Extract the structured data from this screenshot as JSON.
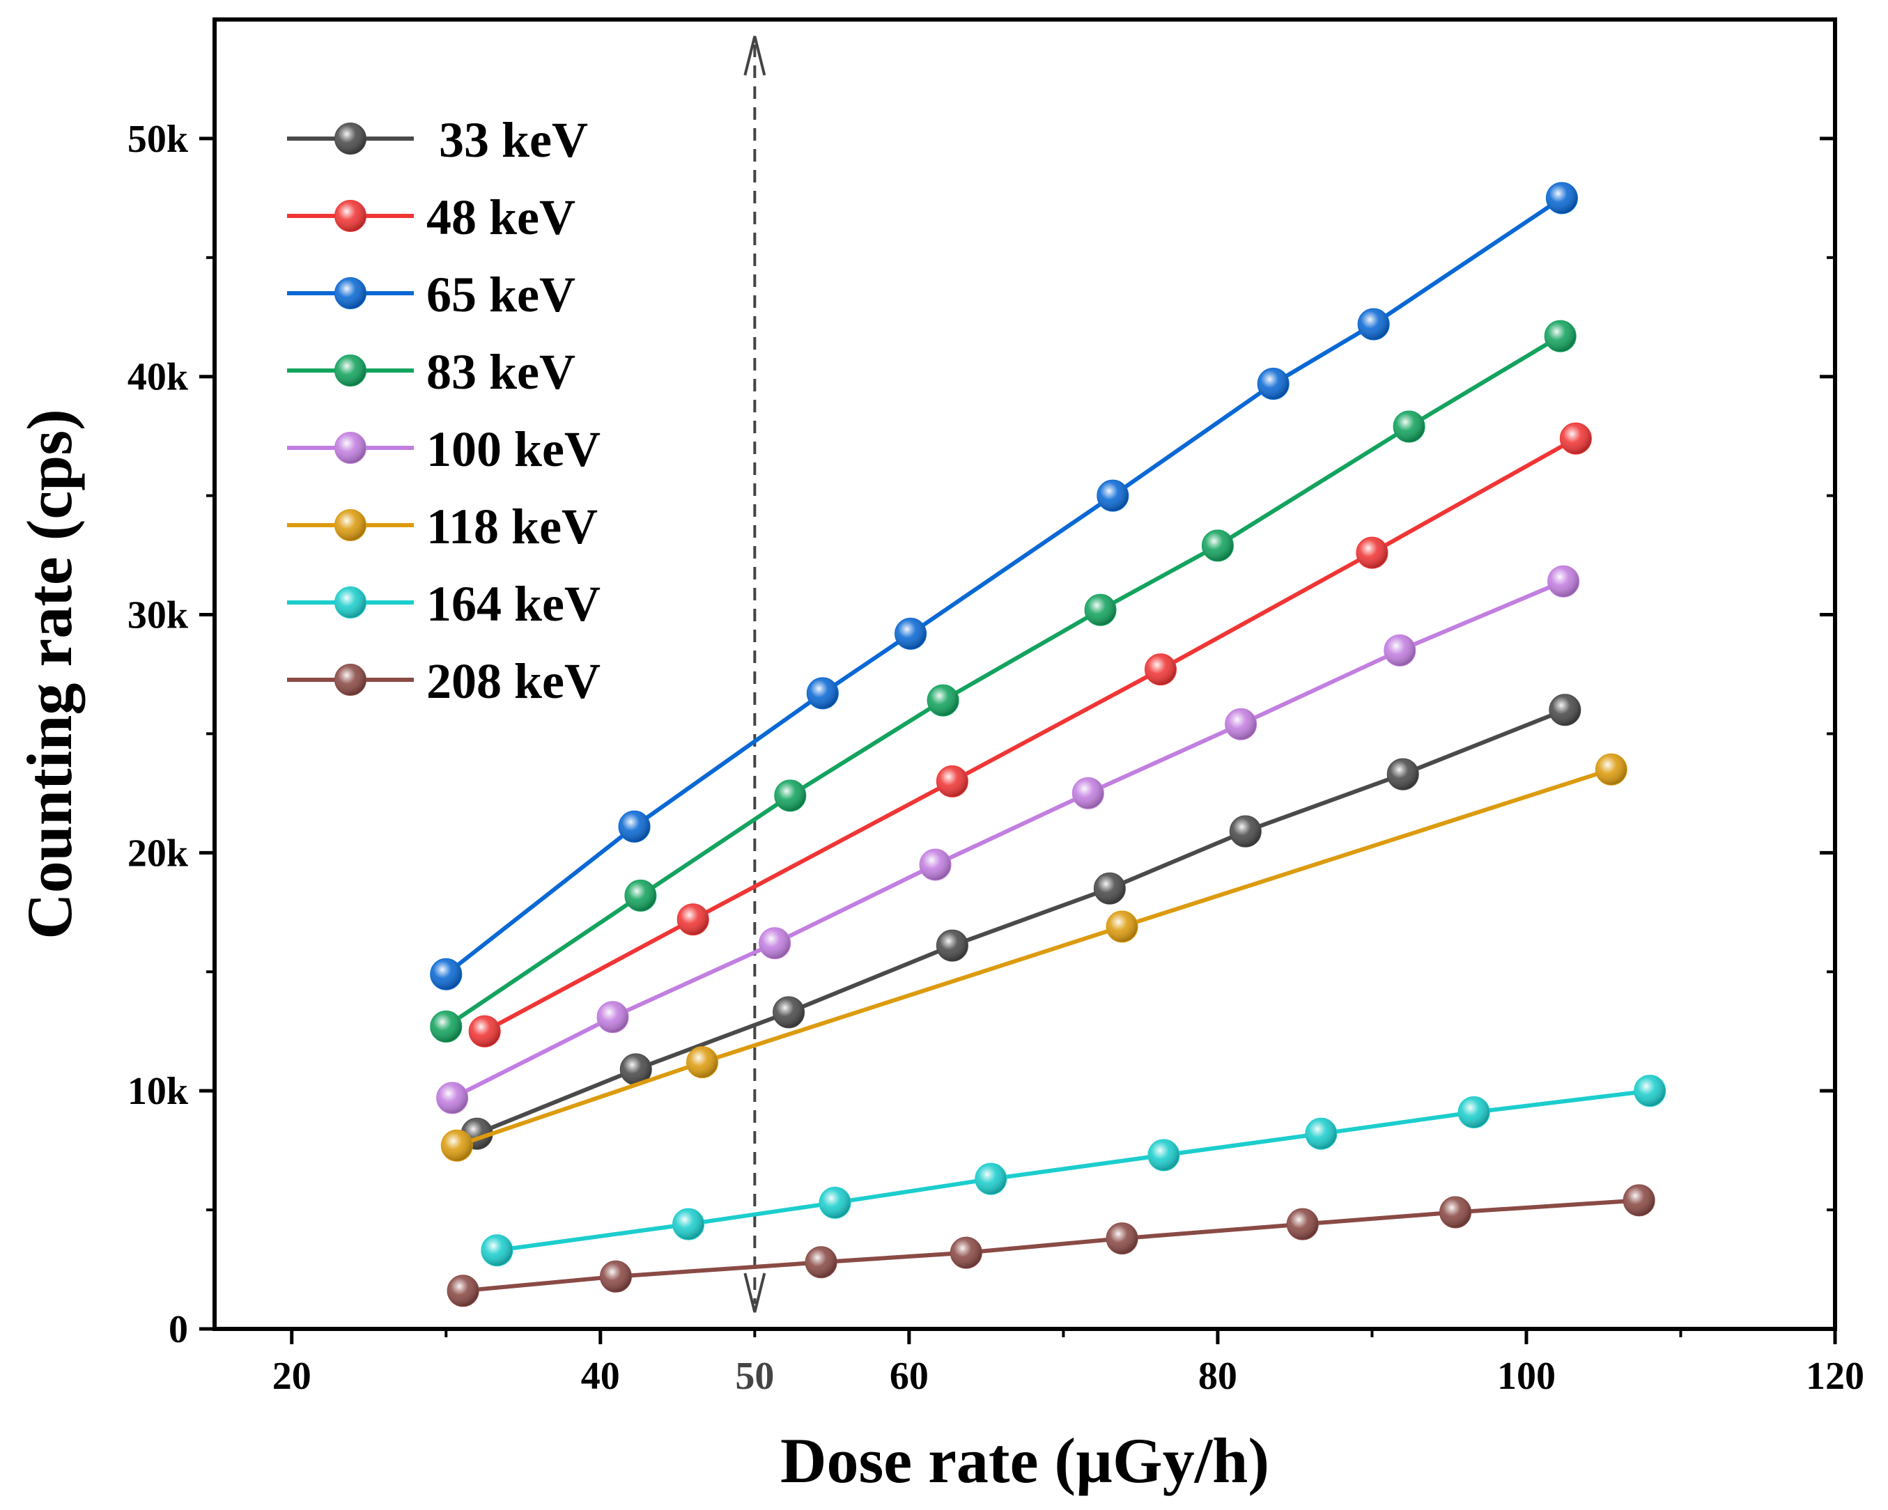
{
  "chart_data": {
    "type": "line",
    "title": "",
    "xlabel": "Dose rate (µGy/h)",
    "ylabel": "Counting rate (cps)",
    "xlim": [
      15,
      120
    ],
    "ylim": [
      0,
      55000
    ],
    "x_ticks": [
      20,
      40,
      60,
      80,
      100,
      120
    ],
    "x_tick_labels": [
      "20",
      "40",
      "60",
      "80",
      "100",
      "120"
    ],
    "y_ticks": [
      0,
      10000,
      20000,
      30000,
      40000,
      50000
    ],
    "y_tick_labels": [
      "0",
      "10k",
      "20k",
      "30k",
      "40k",
      "50k"
    ],
    "grid": false,
    "legend_position": "top-left",
    "annotation": {
      "type": "vertical-dashed-double-arrow",
      "x": 50,
      "label": "50",
      "color": "#444444"
    },
    "series": [
      {
        "name": " 33 keV",
        "color": "#4a4a4a",
        "x": [
          32,
          42.3,
          52.2,
          62.8,
          73,
          81.8,
          92,
          102.5
        ],
        "y": [
          8200,
          10900,
          13300,
          16100,
          18500,
          20900,
          23300,
          26000
        ]
      },
      {
        "name": "48 keV",
        "color": "#f03535",
        "x": [
          32.5,
          46,
          62.8,
          76.3,
          90,
          103.2
        ],
        "y": [
          12500,
          17200,
          23000,
          27700,
          32600,
          37400
        ]
      },
      {
        "name": "65 keV",
        "color": "#0a68d4",
        "x": [
          30,
          42.2,
          54.4,
          60.1,
          73.2,
          83.6,
          90.1,
          102.3
        ],
        "y": [
          14900,
          21100,
          26700,
          29200,
          35000,
          39700,
          42200,
          47500
        ]
      },
      {
        "name": "83 keV",
        "color": "#13a35e",
        "x": [
          30,
          42.6,
          52.3,
          62.2,
          72.4,
          80,
          92.4,
          102.2
        ],
        "y": [
          12700,
          18200,
          22400,
          26400,
          30200,
          32900,
          37900,
          41700
        ]
      },
      {
        "name": "100 keV",
        "color": "#c27ee0",
        "x": [
          30.4,
          40.8,
          51.3,
          61.7,
          71.6,
          81.5,
          91.8,
          102.4
        ],
        "y": [
          9700,
          13100,
          16200,
          19500,
          22500,
          25400,
          28500,
          31400
        ]
      },
      {
        "name": "118 keV",
        "color": "#dc9b0e",
        "x": [
          30.7,
          46.6,
          73.8,
          105.5
        ],
        "y": [
          7700,
          11200,
          16900,
          23500
        ]
      },
      {
        "name": "164 keV",
        "color": "#1ccdcd",
        "x": [
          33.3,
          45.7,
          55.2,
          65.3,
          76.5,
          86.7,
          96.6,
          108
        ],
        "y": [
          3300,
          4400,
          5300,
          6300,
          7300,
          8200,
          9100,
          10000
        ]
      },
      {
        "name": "208 keV",
        "color": "#8a4a45",
        "x": [
          31.1,
          41,
          54.3,
          63.7,
          73.8,
          85.5,
          95.4,
          107.3
        ],
        "y": [
          1600,
          2200,
          2800,
          3200,
          3800,
          4400,
          4900,
          5400
        ]
      }
    ]
  }
}
